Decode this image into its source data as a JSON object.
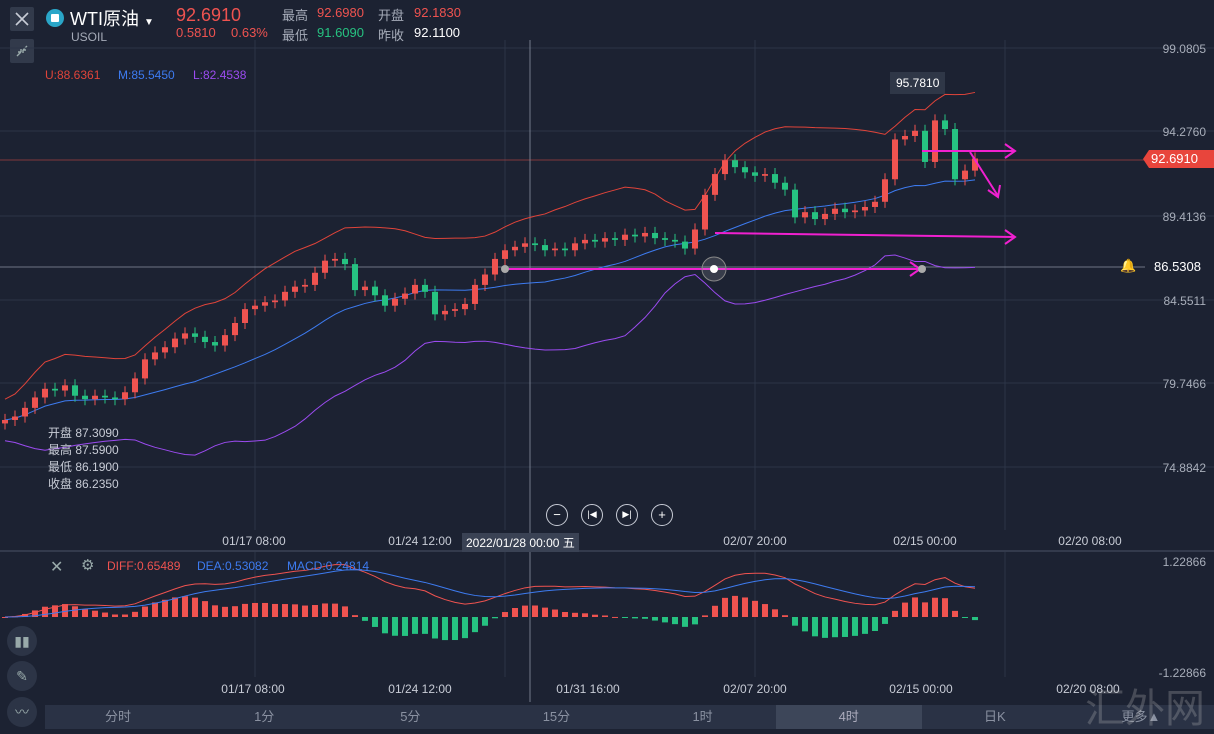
{
  "header": {
    "symbol": "WTI原油",
    "code": "USOIL",
    "price": "92.6910",
    "change": "0.5810",
    "change_pct": "0.63%",
    "high_label": "最高",
    "high": "92.6980",
    "open_label": "开盘",
    "open": "92.1830",
    "low_label": "最低",
    "low": "91.6090",
    "prev_label": "昨收",
    "prev_close": "92.1100"
  },
  "bollinger": {
    "u": "U:88.6361",
    "m": "M:85.5450",
    "l": "L:82.4538"
  },
  "price_axis": [
    "99.0805",
    "94.2760",
    "89.4136",
    "84.5511",
    "79.7466",
    "74.8842"
  ],
  "current_price_tag": "92.6910",
  "crosshair": {
    "price": "86.5308",
    "time": "2022/01/28 00:00 五"
  },
  "max_tooltip": "95.7810",
  "ohlc_info": {
    "open": "开盘 87.3090",
    "high": "最高 87.5900",
    "low": "最低 86.1900",
    "close": "收盘 86.2350"
  },
  "time_axis": [
    "01/17 08:00",
    "01/24 12:00",
    "02/07 20:00",
    "02/15 00:00",
    "02/20 08:00"
  ],
  "macd": {
    "diff": "DIFF:0.65489",
    "dea": "DEA:0.53082",
    "macd": "MACD:0.24814",
    "max": "1.22866",
    "min": "-1.22866",
    "time_axis": [
      "01/17 08:00",
      "01/24 12:00",
      "01/31 16:00",
      "02/07 20:00",
      "02/15 00:00",
      "02/20 08:00"
    ]
  },
  "tabs": [
    "分时",
    "1分",
    "5分",
    "15分",
    "1时",
    "4时",
    "日K",
    "更多▲"
  ],
  "active_tab": 5,
  "watermark": "汇外网",
  "colors": {
    "up": "#ef5350",
    "down": "#26c281",
    "upper": "#e0443a",
    "mid": "#3d7bf0",
    "lower": "#9b4bf0",
    "annot": "#f020d0"
  },
  "chart_data": {
    "type": "candlestick",
    "ylim": [
      74.8842,
      99.0805
    ],
    "closes": [
      77.6,
      77.8,
      78.3,
      78.9,
      79.4,
      79.3,
      79.6,
      79.0,
      78.8,
      79.0,
      78.9,
      78.8,
      79.2,
      80.0,
      81.1,
      81.5,
      81.8,
      82.3,
      82.6,
      82.4,
      82.1,
      81.9,
      82.5,
      83.2,
      84.0,
      84.2,
      84.4,
      84.5,
      85.0,
      85.3,
      85.4,
      86.1,
      86.8,
      86.9,
      86.6,
      85.1,
      85.3,
      84.8,
      84.2,
      84.6,
      84.9,
      85.4,
      85.0,
      83.7,
      83.9,
      84.0,
      84.3,
      85.4,
      86.0,
      86.9,
      87.4,
      87.6,
      87.8,
      87.7,
      87.4,
      87.5,
      87.4,
      87.8,
      88.0,
      87.9,
      88.1,
      88.0,
      88.3,
      88.2,
      88.4,
      88.1,
      88.0,
      87.9,
      87.5,
      88.6,
      90.6,
      91.8,
      92.6,
      92.2,
      91.9,
      91.7,
      91.8,
      91.3,
      90.9,
      89.3,
      89.6,
      89.2,
      89.5,
      89.8,
      89.6,
      89.7,
      89.9,
      90.2,
      91.5,
      93.8,
      94.0,
      94.3,
      92.5,
      94.9,
      94.4,
      91.5,
      92.0,
      92.7
    ]
  }
}
